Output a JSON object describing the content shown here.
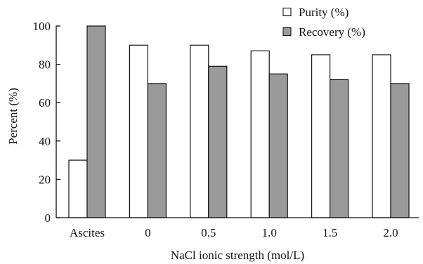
{
  "chart_data": {
    "type": "bar",
    "title": "",
    "xlabel": "NaCl  ionic strength (mol/L)",
    "ylabel": "Percent (%)",
    "categories": [
      "Ascites",
      "0",
      "0.5",
      "1.0",
      "1.5",
      "2.0"
    ],
    "series": [
      {
        "name": "Purity (%)",
        "values": [
          30,
          90,
          90,
          87,
          85,
          85
        ],
        "color": "#ffffff"
      },
      {
        "name": "Recovery (%)",
        "values": [
          100,
          70,
          79,
          75,
          72,
          70
        ],
        "color": "#9a9a9a"
      }
    ],
    "ylim": [
      0,
      100
    ],
    "yticks": [
      0,
      20,
      40,
      60,
      80,
      100
    ],
    "grid": false,
    "legend_position": "top-right"
  }
}
